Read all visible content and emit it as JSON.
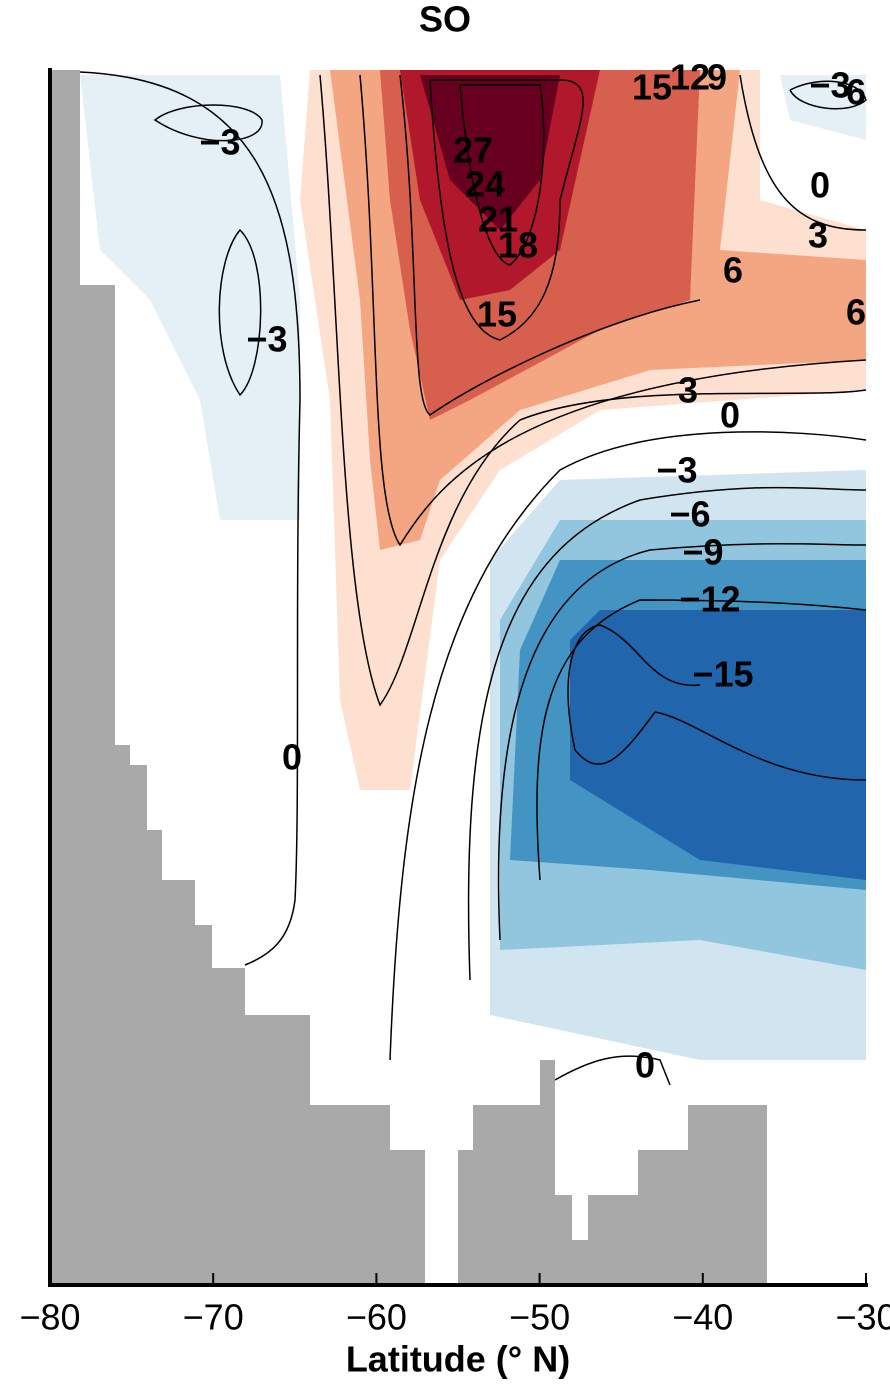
{
  "chart_data": {
    "type": "contour",
    "title": "SO",
    "x_label": "Latitude (° N)",
    "xlim": [
      -80,
      -30
    ],
    "xticks": [
      {
        "value": -80,
        "label": "−80"
      },
      {
        "value": -70,
        "label": "−70"
      },
      {
        "value": -60,
        "label": "−60"
      },
      {
        "value": -50,
        "label": "−50"
      },
      {
        "value": -40,
        "label": "−40"
      },
      {
        "value": -30,
        "label": "−30"
      }
    ],
    "contour_labels": [
      "−3",
      "−3",
      "27",
      "24",
      "21",
      "18",
      "15",
      "15",
      "12",
      "9",
      "−3",
      "6",
      "0",
      "3",
      "6",
      "6",
      "3",
      "0",
      "−3",
      "−6",
      "−9",
      "−12",
      "−15",
      "0",
      "0"
    ]
  }
}
